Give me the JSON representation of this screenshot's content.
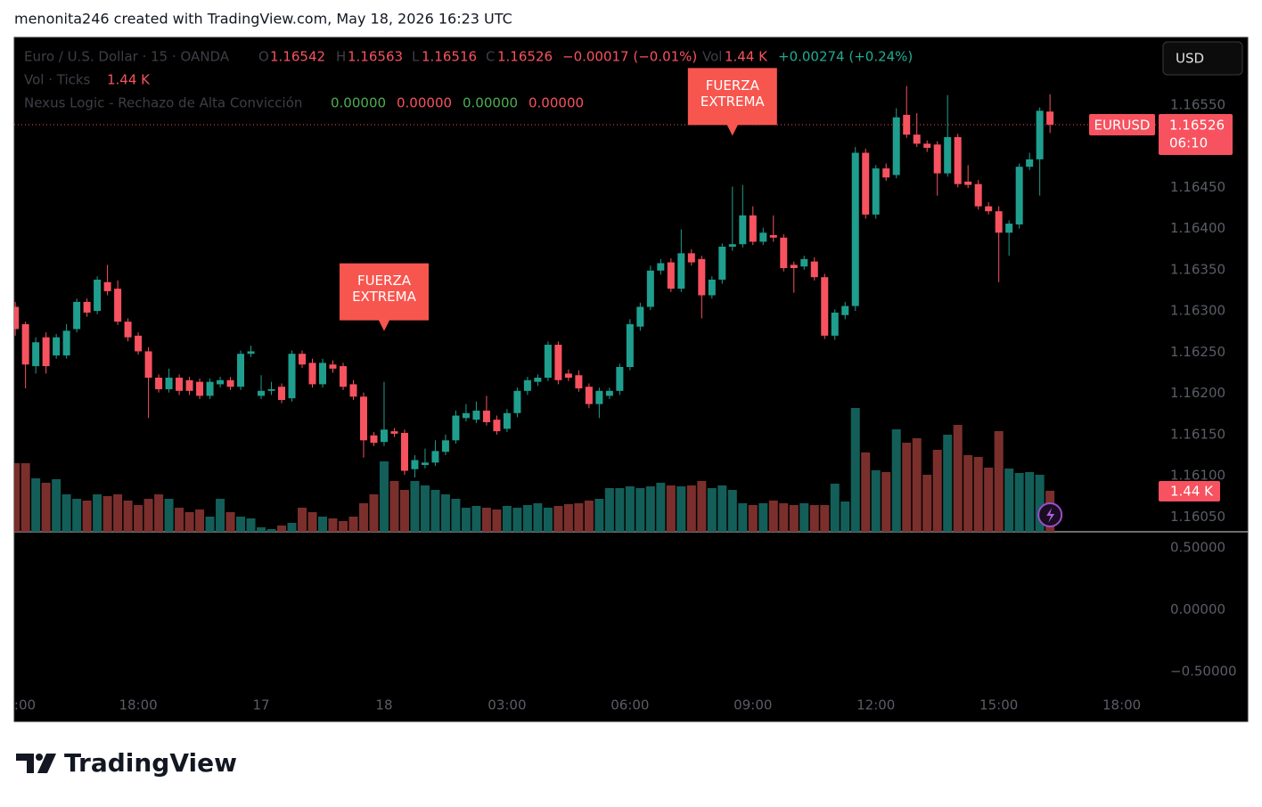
{
  "header": {
    "credit": "menonita246 created with TradingView.com, May 18, 2026 16:23 UTC",
    "brand": "TradingView"
  },
  "toolbar": {
    "currency": "USD"
  },
  "chart_data": {
    "type": "candlestick",
    "symbol_title": "Euro / U.S. Dollar · 15 · OANDA",
    "ohlc_letters": [
      "O",
      "H",
      "L",
      "C"
    ],
    "change": "−0.00017 (−0.01%)",
    "vol_letter": "Vol",
    "volume_change": "+0.00274 (+0.24%)",
    "volume_title": "Vol · Ticks",
    "volume_label": "1.44 K",
    "symbol_badge": "EURUSD",
    "countdown": "06:10",
    "indicator": {
      "name": "Nexus Logic - Rechazo de Alta Convicción",
      "values": [
        0,
        0,
        0,
        0
      ],
      "value_labels": [
        "0.00000",
        "0.00000",
        "0.00000",
        "0.00000"
      ],
      "colors": [
        "#4caf50",
        "#f7525f",
        "#4caf50",
        "#f7525f"
      ]
    },
    "annotations": [
      {
        "lines": [
          "FUERZA",
          "EXTREMA"
        ],
        "candle": 36
      },
      {
        "lines": [
          "FUERZA",
          "EXTREMA"
        ],
        "candle": 70
      }
    ],
    "up_color": "#1f9e8e",
    "down_color": "#f7525f",
    "volume_up_color": "#135e58",
    "volume_down_color": "#7b2f2c",
    "open": [
      1.16305,
      1.16284,
      1.16233,
      1.16268,
      1.16246,
      1.16246,
      1.16278,
      1.16311,
      1.163,
      1.16335,
      1.16327,
      1.16287,
      1.1627,
      1.16251,
      1.16219,
      1.16205,
      1.16219,
      1.16216,
      1.16214,
      1.16197,
      1.16211,
      1.16216,
      1.16208,
      1.16248,
      1.16197,
      1.16203,
      1.16208,
      1.16194,
      1.16248,
      1.16237,
      1.16211,
      1.16235,
      1.16233,
      1.16211,
      1.16196,
      1.16149,
      1.16141,
      1.16154,
      1.16152,
      1.16108,
      1.16113,
      1.16116,
      1.16129,
      1.16143,
      1.1617,
      1.16168,
      1.16179,
      1.16168,
      1.16157,
      1.16176,
      1.16203,
      1.16214,
      1.16219,
      1.16259,
      1.16224,
      1.16222,
      1.16208,
      1.16187,
      1.16197,
      1.16203,
      1.16232,
      1.16281,
      1.16305,
      1.16349,
      1.16359,
      1.16327,
      1.1637,
      1.16363,
      1.16319,
      1.16338,
      1.16378,
      1.16381,
      1.16416,
      1.16384,
      1.16392,
      1.16389,
      1.16356,
      1.16354,
      1.1636,
      1.16341,
      1.1627,
      1.16295,
      1.16306,
      1.16492,
      1.16417,
      1.16473,
      1.16465,
      1.16538,
      1.16514,
      1.16503,
      1.16502,
      1.16467,
      1.16511,
      1.16457,
      1.16454,
      1.16427,
      1.16421,
      1.16395,
      1.16405,
      1.16475,
      1.16484,
      1.16542
    ],
    "high": [
      1.16311,
      1.16287,
      1.16268,
      1.16274,
      1.16272,
      1.16284,
      1.16315,
      1.16315,
      1.16342,
      1.16356,
      1.16337,
      1.16291,
      1.16274,
      1.16256,
      1.16223,
      1.1623,
      1.16223,
      1.1622,
      1.16218,
      1.16218,
      1.1622,
      1.1622,
      1.16252,
      1.16258,
      1.16222,
      1.16214,
      1.16212,
      1.16252,
      1.16252,
      1.16242,
      1.16242,
      1.1624,
      1.16237,
      1.16216,
      1.16201,
      1.16153,
      1.16214,
      1.16158,
      1.16156,
      1.16125,
      1.16133,
      1.16143,
      1.1615,
      1.16179,
      1.16187,
      1.1619,
      1.16197,
      1.16173,
      1.16181,
      1.16207,
      1.1622,
      1.16223,
      1.16263,
      1.16263,
      1.16229,
      1.16228,
      1.16212,
      1.16207,
      1.16207,
      1.16236,
      1.1629,
      1.1631,
      1.16355,
      1.16363,
      1.16364,
      1.16399,
      1.16375,
      1.16367,
      1.16342,
      1.16382,
      1.16451,
      1.16453,
      1.16427,
      1.16401,
      1.16416,
      1.16393,
      1.1636,
      1.16367,
      1.16365,
      1.16345,
      1.16302,
      1.16311,
      1.16499,
      1.16497,
      1.16477,
      1.16479,
      1.16546,
      1.16573,
      1.1654,
      1.16507,
      1.16506,
      1.16562,
      1.16515,
      1.16477,
      1.16459,
      1.16432,
      1.16427,
      1.1641,
      1.16479,
      1.16492,
      1.16547,
      1.16563
    ],
    "low": [
      1.1627,
      1.16206,
      1.16224,
      1.16224,
      1.16242,
      1.16242,
      1.16274,
      1.16293,
      1.16296,
      1.16319,
      1.16283,
      1.16263,
      1.16247,
      1.1617,
      1.16201,
      1.16201,
      1.16198,
      1.16198,
      1.16193,
      1.16193,
      1.16207,
      1.16204,
      1.16204,
      1.16244,
      1.16193,
      1.16198,
      1.16188,
      1.1619,
      1.16231,
      1.16207,
      1.16207,
      1.16225,
      1.16204,
      1.16192,
      1.16122,
      1.16136,
      1.16136,
      1.16147,
      1.16101,
      1.16098,
      1.16109,
      1.16112,
      1.16125,
      1.16139,
      1.16166,
      1.16164,
      1.16161,
      1.1615,
      1.16153,
      1.16171,
      1.16198,
      1.16209,
      1.16215,
      1.16211,
      1.16215,
      1.16202,
      1.16182,
      1.1617,
      1.16193,
      1.16198,
      1.16228,
      1.16276,
      1.16301,
      1.16344,
      1.16323,
      1.16323,
      1.16355,
      1.16291,
      1.16315,
      1.16333,
      1.16373,
      1.16377,
      1.1638,
      1.1638,
      1.16384,
      1.16348,
      1.16322,
      1.1635,
      1.16337,
      1.16266,
      1.16265,
      1.1629,
      1.163,
      1.16412,
      1.16412,
      1.16458,
      1.16461,
      1.1651,
      1.16499,
      1.16493,
      1.1644,
      1.16463,
      1.1645,
      1.16449,
      1.16423,
      1.16417,
      1.16335,
      1.16367,
      1.164,
      1.16471,
      1.1644,
      1.16516
    ],
    "close": [
      1.16278,
      1.16235,
      1.16262,
      1.16233,
      1.16268,
      1.16276,
      1.16311,
      1.16298,
      1.16338,
      1.16324,
      1.16287,
      1.16268,
      1.16251,
      1.16219,
      1.16205,
      1.16219,
      1.16203,
      1.16203,
      1.16197,
      1.16214,
      1.16216,
      1.16208,
      1.16248,
      1.16251,
      1.16203,
      1.16205,
      1.16192,
      1.16248,
      1.16235,
      1.16211,
      1.16237,
      1.1623,
      1.16208,
      1.16196,
      1.16143,
      1.1614,
      1.16156,
      1.16151,
      1.16106,
      1.16119,
      1.16116,
      1.1613,
      1.16143,
      1.16173,
      1.16176,
      1.16179,
      1.16165,
      1.16154,
      1.16176,
      1.16203,
      1.16216,
      1.16219,
      1.16259,
      1.16216,
      1.16219,
      1.16206,
      1.16187,
      1.16203,
      1.16203,
      1.16232,
      1.16284,
      1.16305,
      1.16349,
      1.16358,
      1.16327,
      1.1637,
      1.16359,
      1.16319,
      1.16338,
      1.16378,
      1.16381,
      1.16416,
      1.16384,
      1.16395,
      1.16389,
      1.16352,
      1.16352,
      1.16363,
      1.16341,
      1.1627,
      1.16298,
      1.16306,
      1.16492,
      1.16417,
      1.16473,
      1.16462,
      1.16535,
      1.16514,
      1.16503,
      1.16498,
      1.16467,
      1.16511,
      1.16454,
      1.16453,
      1.16427,
      1.16421,
      1.16395,
      1.16406,
      1.16475,
      1.16484,
      1.16543,
      1.16526
    ],
    "volume": [
      2410,
      2410,
      1878,
      1722,
      1847,
      1315,
      1158,
      1096,
      1315,
      1252,
      1315,
      1096,
      939,
      1158,
      1315,
      1158,
      845,
      689,
      783,
      532,
      1158,
      689,
      532,
      470,
      157,
      94,
      219,
      313,
      845,
      689,
      532,
      470,
      376,
      532,
      1002,
      1315,
      2473,
      1784,
      1471,
      1784,
      1628,
      1471,
      1315,
      1158,
      845,
      908,
      845,
      783,
      908,
      845,
      939,
      1002,
      845,
      908,
      970,
      1002,
      1096,
      1158,
      1534,
      1534,
      1596,
      1534,
      1596,
      1722,
      1628,
      1596,
      1628,
      1784,
      1534,
      1628,
      1471,
      1002,
      939,
      1002,
      1096,
      1002,
      939,
      1002,
      939,
      939,
      1690,
      1064,
      4351,
      2786,
      2160,
      2097,
      3600,
      3130,
      3287,
      2003,
      2880,
      3412,
      3756,
      2692,
      2629,
      2254,
      3537,
      2222,
      2066,
      2097,
      2003,
      1440
    ],
    "xlim": [
      -0.1,
      111.6
    ],
    "xticks": [
      {
        "value": 0,
        "label": ":00"
      },
      {
        "value": 12,
        "label": "18:00"
      },
      {
        "value": 24,
        "label": "17"
      },
      {
        "value": 36,
        "label": "18"
      },
      {
        "value": 48,
        "label": "03:00"
      },
      {
        "value": 60,
        "label": "06:00"
      },
      {
        "value": 72,
        "label": "09:00"
      },
      {
        "value": 84,
        "label": "12:00"
      },
      {
        "value": 96,
        "label": "15:00"
      },
      {
        "value": 108,
        "label": "18:00"
      }
    ],
    "ylim": [
      1.16032,
      1.16632
    ],
    "yticks": [
      {
        "value": 1.1655,
        "label": "1.16550"
      },
      {
        "value": 1.1645,
        "label": "1.16450"
      },
      {
        "value": 1.164,
        "label": "1.16400"
      },
      {
        "value": 1.1635,
        "label": "1.16350"
      },
      {
        "value": 1.163,
        "label": "1.16300"
      },
      {
        "value": 1.1625,
        "label": "1.16250"
      },
      {
        "value": 1.162,
        "label": "1.16200"
      },
      {
        "value": 1.1615,
        "label": "1.16150"
      },
      {
        "value": 1.161,
        "label": "1.16100"
      },
      {
        "value": 1.1605,
        "label": "1.16050"
      }
    ],
    "y2lim": [
      -0.65,
      0.63
    ],
    "y2ticks": [
      {
        "value": 0.5,
        "label": "0.50000"
      },
      {
        "value": 0,
        "label": "0.00000"
      },
      {
        "value": -0.5,
        "label": "−0.50000"
      }
    ]
  }
}
